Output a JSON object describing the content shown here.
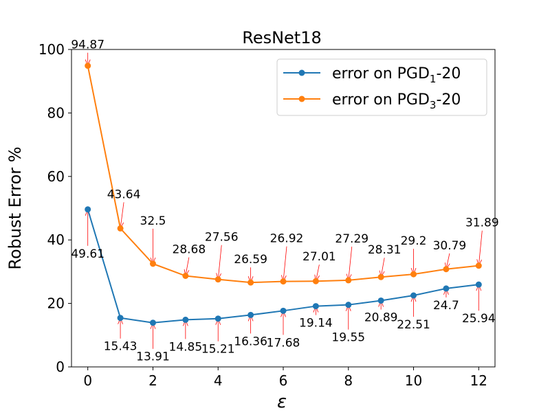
{
  "chart_data": {
    "type": "line",
    "title": "ResNet18",
    "xlabel": "ε",
    "ylabel": "Robust Error %",
    "xlim": [
      -0.5,
      12.5
    ],
    "ylim": [
      0,
      100
    ],
    "x_ticks": [
      "0",
      "2",
      "4",
      "6",
      "8",
      "10",
      "12"
    ],
    "y_ticks": [
      "0",
      "20",
      "40",
      "60",
      "80",
      "100"
    ],
    "x": [
      0,
      1,
      2,
      3,
      4,
      5,
      6,
      7,
      8,
      9,
      10,
      11,
      12
    ],
    "grid": false,
    "legend_position": "top-right",
    "series": [
      {
        "name": "error on PGD1-20",
        "legend_prefix": "error on PGD",
        "legend_sub": "1",
        "legend_suffix": "-20",
        "color": "#1f77b4",
        "values": [
          49.61,
          15.43,
          13.91,
          14.85,
          15.21,
          16.36,
          17.68,
          19.14,
          19.55,
          20.89,
          22.51,
          24.7,
          25.94
        ],
        "labels": [
          "49.61",
          "15.43",
          "13.91",
          "14.85",
          "15.21",
          "16.36",
          "17.68",
          "19.14",
          "19.55",
          "20.89",
          "22.51",
          "24.7",
          "25.94"
        ]
      },
      {
        "name": "error on PGD3-20",
        "legend_prefix": "error on PGD",
        "legend_sub": "3",
        "legend_suffix": "-20",
        "color": "#ff7f0e",
        "values": [
          94.87,
          43.64,
          32.5,
          28.68,
          27.56,
          26.59,
          26.92,
          27.01,
          27.29,
          28.31,
          29.2,
          30.79,
          31.89
        ],
        "labels": [
          "94.87",
          "43.64",
          "32.5",
          "28.68",
          "27.56",
          "26.59",
          "26.92",
          "27.01",
          "27.29",
          "28.31",
          "29.2",
          "30.79",
          "31.89"
        ]
      }
    ],
    "annotation_arrow_color": "#ff0000"
  }
}
